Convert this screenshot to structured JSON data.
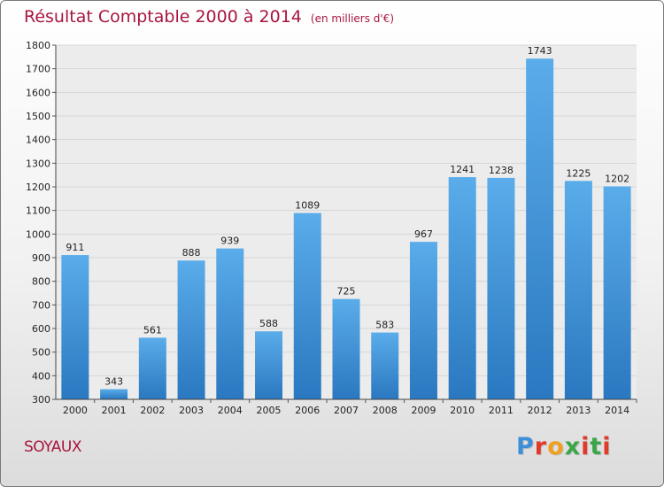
{
  "colors": {
    "title": "#a8163f",
    "bar_light": "#5aacea",
    "bar_dark": "#2a78c0",
    "grid": "#d6d6d6",
    "logo": [
      "#3f8fd8",
      "#e23a2a",
      "#f0a020",
      "#3aa648",
      "#e23a2a",
      "#3aa648",
      "#e23a2a"
    ]
  },
  "logo": {
    "letters": [
      "P",
      "r",
      "o",
      "x",
      "i",
      "t",
      "i"
    ]
  },
  "chart_data": {
    "type": "bar",
    "title": "Résultat Comptable 2000 à 2014",
    "subtitle": "(en milliers d'€)",
    "xlabel": "",
    "ylabel": "",
    "categories": [
      "2000",
      "2001",
      "2002",
      "2003",
      "2004",
      "2005",
      "2006",
      "2007",
      "2008",
      "2009",
      "2010",
      "2011",
      "2012",
      "2013",
      "2014"
    ],
    "values": [
      911,
      343,
      561,
      888,
      939,
      588,
      1089,
      725,
      583,
      967,
      1241,
      1238,
      1743,
      1225,
      1202
    ],
    "ylim": [
      300,
      1800
    ],
    "yticks": [
      300,
      400,
      500,
      600,
      700,
      800,
      900,
      1000,
      1100,
      1200,
      1300,
      1400,
      1500,
      1600,
      1700,
      1800
    ],
    "grid": true,
    "legend": "none"
  },
  "footer": {
    "city": "SOYAUX"
  }
}
